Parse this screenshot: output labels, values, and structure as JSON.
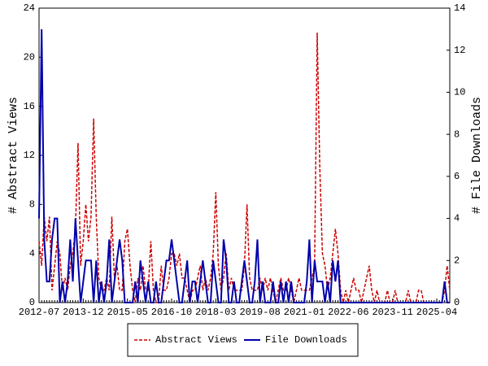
{
  "chart_data": {
    "type": "line",
    "y_label": "# Abstract Views",
    "y2_label": "# File Downloads",
    "categories": [
      "2012-07",
      null,
      null,
      null,
      null,
      null,
      null,
      null,
      null,
      null,
      null,
      null,
      null,
      null,
      null,
      null,
      null,
      "2013-12",
      null,
      null,
      null,
      null,
      null,
      null,
      null,
      null,
      null,
      null,
      null,
      null,
      null,
      null,
      null,
      null,
      "2015-05",
      null,
      null,
      null,
      null,
      null,
      null,
      null,
      null,
      null,
      null,
      null,
      null,
      null,
      null,
      null,
      null,
      "2016-10",
      null,
      null,
      null,
      null,
      null,
      null,
      null,
      null,
      null,
      null,
      null,
      null,
      null,
      null,
      null,
      null,
      "2018-03",
      null,
      null,
      null,
      null,
      null,
      null,
      null,
      null,
      null,
      null,
      null,
      null,
      null,
      null,
      null,
      null,
      "2019-08",
      null,
      null,
      null,
      null,
      null,
      null,
      null,
      null,
      null,
      null,
      null,
      null,
      null,
      null,
      null,
      null,
      "2021-01",
      null,
      null,
      null,
      null,
      null,
      null,
      null,
      null,
      null,
      null,
      null,
      null,
      null,
      null,
      null,
      null,
      "2022-06",
      null,
      null,
      null,
      null,
      null,
      null,
      null,
      null,
      null,
      null,
      null,
      null,
      null,
      null,
      null,
      null,
      "2023-11",
      null,
      null,
      null,
      null,
      null,
      null,
      null,
      null,
      null,
      null,
      null,
      null,
      null,
      null,
      null,
      null,
      "2025-04",
      null,
      null,
      null,
      null,
      null
    ],
    "series": [
      {
        "name": "Abstract Views",
        "color": "#cc0000",
        "dashed": true,
        "values": [
          5,
          3,
          7,
          5,
          7,
          1,
          3,
          5,
          4,
          1,
          2,
          1,
          3,
          4,
          6,
          13,
          3,
          5,
          8,
          5,
          7,
          15,
          7,
          2,
          1,
          1,
          2,
          1,
          7,
          2,
          3,
          1,
          1,
          5,
          6,
          3,
          1,
          0,
          2,
          1,
          3,
          1,
          1,
          5,
          1,
          0,
          0,
          3,
          1,
          1,
          2,
          4,
          4,
          3,
          4,
          2,
          2,
          1,
          0,
          1,
          1,
          2,
          3,
          1,
          2,
          1,
          2,
          4,
          9,
          3,
          1,
          2,
          4,
          1,
          2,
          1,
          1,
          1,
          1,
          3,
          8,
          2,
          1,
          1,
          1,
          2,
          1,
          2,
          1,
          2,
          1,
          0,
          1,
          2,
          1,
          1,
          2,
          1,
          0,
          1,
          2,
          1,
          1,
          1,
          1,
          2,
          3,
          22,
          11,
          4,
          3,
          1,
          2,
          4,
          6,
          4,
          1,
          0,
          1,
          0,
          1,
          2,
          1,
          1,
          0,
          1,
          2,
          3,
          1,
          0,
          1,
          0,
          0,
          0,
          1,
          0,
          0,
          1,
          0,
          0,
          0,
          0,
          1,
          0,
          0,
          0,
          1,
          1,
          0,
          0,
          0,
          0,
          0,
          0,
          0,
          0,
          1,
          3,
          1
        ]
      },
      {
        "name": "File Downloads",
        "color": "#0000aa",
        "dashed": false,
        "axis": "y2",
        "values": [
          4,
          13,
          3,
          1,
          1,
          3,
          4,
          4,
          0,
          1,
          0,
          1,
          3,
          1,
          4,
          2,
          0,
          1,
          2,
          2,
          2,
          0,
          2,
          0,
          1,
          0,
          1,
          3,
          0,
          1,
          2,
          3,
          2,
          0,
          0,
          0,
          0,
          1,
          0,
          2,
          1,
          0,
          1,
          0,
          0,
          1,
          0,
          0,
          1,
          2,
          2,
          3,
          2,
          1,
          0,
          0,
          1,
          2,
          0,
          1,
          1,
          0,
          1,
          2,
          1,
          0,
          0,
          2,
          1,
          0,
          0,
          3,
          2,
          0,
          0,
          1,
          0,
          0,
          1,
          2,
          1,
          0,
          0,
          1,
          3,
          0,
          1,
          0,
          0,
          0,
          1,
          0,
          0,
          1,
          0,
          1,
          0,
          1,
          0,
          0,
          0,
          0,
          0,
          1,
          3,
          0,
          2,
          1,
          1,
          1,
          0,
          1,
          0,
          2,
          1,
          2,
          0,
          0,
          0,
          0,
          0,
          0,
          0,
          0,
          0,
          0,
          0,
          0,
          0,
          0,
          0,
          0,
          0,
          0,
          0,
          0,
          0,
          0,
          0,
          0,
          0,
          0,
          0,
          0,
          0,
          0,
          0,
          0,
          0,
          0,
          0,
          0,
          0,
          0,
          0,
          0,
          1,
          0,
          0
        ]
      }
    ],
    "ylim": [
      0,
      24
    ],
    "yticks": [
      0,
      4,
      8,
      12,
      16,
      20,
      24
    ],
    "y2lim": [
      0,
      14
    ],
    "y2ticks": [
      0,
      2,
      4,
      6,
      8,
      10,
      12,
      14
    ],
    "legend": "bottom"
  }
}
